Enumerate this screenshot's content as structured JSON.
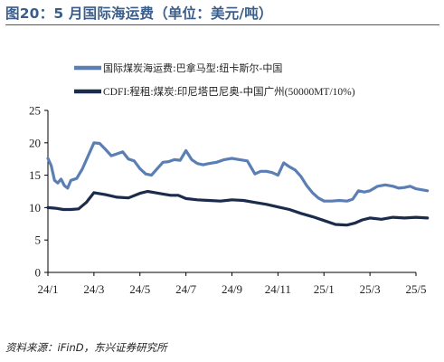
{
  "figure": {
    "title": "图20：5 月国际海运费（单位：美元/吨）",
    "source": "资料来源：iFinD，东兴证券研究所"
  },
  "chart_data": {
    "type": "line",
    "title": "",
    "xlabel": "",
    "ylabel": "",
    "ylim": [
      0,
      25
    ],
    "yticks": [
      0,
      5,
      10,
      15,
      20,
      25
    ],
    "xticks": [
      "24/1",
      "24/3",
      "24/5",
      "24/7",
      "24/9",
      "24/11",
      "25/1",
      "25/3",
      "25/5"
    ],
    "grid": false,
    "legend_position": "top",
    "series": [
      {
        "name": "国际煤炭海运费:巴拿马型:纽卡斯尔-中国",
        "color": "#5b7fb4",
        "points": [
          [
            "24/1",
            17.6
          ],
          [
            "24/1",
            16.5
          ],
          [
            "24/1",
            14.2
          ],
          [
            "24/1",
            13.8
          ],
          [
            "24/1",
            14.4
          ],
          [
            "24/1",
            13.4
          ],
          [
            "24/1",
            13.0
          ],
          [
            "24/2",
            14.2
          ],
          [
            "24/2",
            14.5
          ],
          [
            "24/2",
            16.0
          ],
          [
            "24/2",
            18.0
          ],
          [
            "24/3",
            20.0
          ],
          [
            "24/3",
            19.9
          ],
          [
            "24/3",
            19.0
          ],
          [
            "24/3",
            18.0
          ],
          [
            "24/4",
            18.3
          ],
          [
            "24/4",
            18.6
          ],
          [
            "24/4",
            17.5
          ],
          [
            "24/4",
            17.2
          ],
          [
            "24/5",
            16.0
          ],
          [
            "24/5",
            15.2
          ],
          [
            "24/5",
            15.0
          ],
          [
            "24/5",
            16.0
          ],
          [
            "24/6",
            17.0
          ],
          [
            "24/6",
            17.1
          ],
          [
            "24/6",
            17.4
          ],
          [
            "24/6",
            17.3
          ],
          [
            "24/7",
            18.8
          ],
          [
            "24/7",
            17.4
          ],
          [
            "24/7",
            16.8
          ],
          [
            "24/7",
            16.6
          ],
          [
            "24/8",
            16.8
          ],
          [
            "24/8",
            17.0
          ],
          [
            "24/8",
            17.4
          ],
          [
            "24/9",
            17.6
          ],
          [
            "24/9",
            17.4
          ],
          [
            "24/9",
            17.2
          ],
          [
            "24/10",
            15.2
          ],
          [
            "24/10",
            15.6
          ],
          [
            "24/10",
            15.6
          ],
          [
            "24/10",
            15.4
          ],
          [
            "24/11",
            15.0
          ],
          [
            "24/11",
            16.9
          ],
          [
            "24/11",
            16.3
          ],
          [
            "24/11",
            15.8
          ],
          [
            "24/12",
            14.8
          ],
          [
            "24/12",
            13.4
          ],
          [
            "24/12",
            12.3
          ],
          [
            "24/12",
            11.5
          ],
          [
            "25/1",
            11.0
          ],
          [
            "25/1",
            11.0
          ],
          [
            "25/1",
            11.1
          ],
          [
            "25/2",
            11.0
          ],
          [
            "25/2",
            11.3
          ],
          [
            "25/2",
            12.6
          ],
          [
            "25/2",
            12.4
          ],
          [
            "25/3",
            12.6
          ],
          [
            "25/3",
            13.3
          ],
          [
            "25/3",
            13.5
          ],
          [
            "25/4",
            13.3
          ],
          [
            "25/4",
            13.0
          ],
          [
            "25/4",
            13.1
          ],
          [
            "25/4",
            13.3
          ],
          [
            "25/5",
            12.9
          ],
          [
            "25/5",
            12.6
          ]
        ]
      },
      {
        "name": "CDFI:程租:煤炭:印尼塔巴尼奥-中国广州(50000MT/10%)",
        "color": "#1b2b4c",
        "points": [
          [
            "24/1",
            10.0
          ],
          [
            "24/1",
            9.9
          ],
          [
            "24/1",
            9.7
          ],
          [
            "24/2",
            9.7
          ],
          [
            "24/2",
            9.8
          ],
          [
            "24/2",
            10.8
          ],
          [
            "24/3",
            12.3
          ],
          [
            "24/3",
            12.0
          ],
          [
            "24/4",
            11.6
          ],
          [
            "24/4",
            11.5
          ],
          [
            "24/5",
            12.2
          ],
          [
            "24/5",
            12.5
          ],
          [
            "24/5",
            12.3
          ],
          [
            "24/6",
            12.1
          ],
          [
            "24/6",
            11.9
          ],
          [
            "24/6",
            11.9
          ],
          [
            "24/7",
            11.4
          ],
          [
            "24/7",
            11.2
          ],
          [
            "24/8",
            11.1
          ],
          [
            "24/8",
            11.0
          ],
          [
            "24/9",
            11.2
          ],
          [
            "24/9",
            11.1
          ],
          [
            "24/10",
            10.8
          ],
          [
            "24/10",
            10.5
          ],
          [
            "24/11",
            10.1
          ],
          [
            "24/11",
            9.7
          ],
          [
            "24/12",
            9.1
          ],
          [
            "24/12",
            8.6
          ],
          [
            "25/1",
            8.0
          ],
          [
            "25/1",
            7.4
          ],
          [
            "25/2",
            7.3
          ],
          [
            "25/2",
            7.6
          ],
          [
            "25/2",
            8.1
          ],
          [
            "25/3",
            8.4
          ],
          [
            "25/3",
            8.2
          ],
          [
            "25/4",
            8.5
          ],
          [
            "25/4",
            8.4
          ],
          [
            "25/5",
            8.5
          ],
          [
            "25/5",
            8.4
          ]
        ]
      }
    ]
  }
}
